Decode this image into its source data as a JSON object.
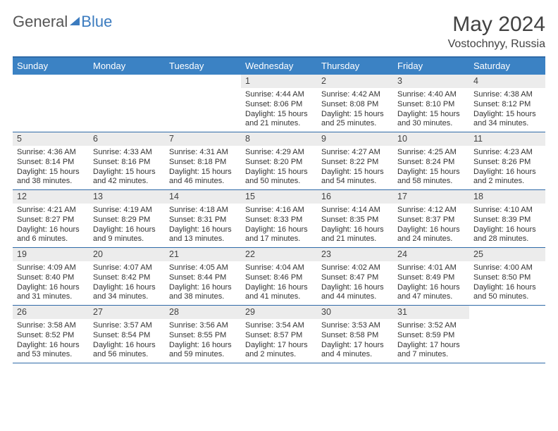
{
  "logo": {
    "word1": "General",
    "word2": "Blue"
  },
  "title": "May 2024",
  "subtitle": "Vostochnyy, Russia",
  "colors": {
    "header_bg": "#3b82c4",
    "rule": "#2f6aa8",
    "daynum_bg": "#ececec",
    "text": "#333333"
  },
  "day_headers": [
    "Sunday",
    "Monday",
    "Tuesday",
    "Wednesday",
    "Thursday",
    "Friday",
    "Saturday"
  ],
  "weeks": [
    [
      {
        "n": "",
        "lines": [
          "",
          "",
          ""
        ]
      },
      {
        "n": "",
        "lines": [
          "",
          "",
          ""
        ]
      },
      {
        "n": "",
        "lines": [
          "",
          "",
          ""
        ]
      },
      {
        "n": "1",
        "lines": [
          "Sunrise: 4:44 AM",
          "Sunset: 8:06 PM",
          "Daylight: 15 hours and 21 minutes."
        ]
      },
      {
        "n": "2",
        "lines": [
          "Sunrise: 4:42 AM",
          "Sunset: 8:08 PM",
          "Daylight: 15 hours and 25 minutes."
        ]
      },
      {
        "n": "3",
        "lines": [
          "Sunrise: 4:40 AM",
          "Sunset: 8:10 PM",
          "Daylight: 15 hours and 30 minutes."
        ]
      },
      {
        "n": "4",
        "lines": [
          "Sunrise: 4:38 AM",
          "Sunset: 8:12 PM",
          "Daylight: 15 hours and 34 minutes."
        ]
      }
    ],
    [
      {
        "n": "5",
        "lines": [
          "Sunrise: 4:36 AM",
          "Sunset: 8:14 PM",
          "Daylight: 15 hours and 38 minutes."
        ]
      },
      {
        "n": "6",
        "lines": [
          "Sunrise: 4:33 AM",
          "Sunset: 8:16 PM",
          "Daylight: 15 hours and 42 minutes."
        ]
      },
      {
        "n": "7",
        "lines": [
          "Sunrise: 4:31 AM",
          "Sunset: 8:18 PM",
          "Daylight: 15 hours and 46 minutes."
        ]
      },
      {
        "n": "8",
        "lines": [
          "Sunrise: 4:29 AM",
          "Sunset: 8:20 PM",
          "Daylight: 15 hours and 50 minutes."
        ]
      },
      {
        "n": "9",
        "lines": [
          "Sunrise: 4:27 AM",
          "Sunset: 8:22 PM",
          "Daylight: 15 hours and 54 minutes."
        ]
      },
      {
        "n": "10",
        "lines": [
          "Sunrise: 4:25 AM",
          "Sunset: 8:24 PM",
          "Daylight: 15 hours and 58 minutes."
        ]
      },
      {
        "n": "11",
        "lines": [
          "Sunrise: 4:23 AM",
          "Sunset: 8:26 PM",
          "Daylight: 16 hours and 2 minutes."
        ]
      }
    ],
    [
      {
        "n": "12",
        "lines": [
          "Sunrise: 4:21 AM",
          "Sunset: 8:27 PM",
          "Daylight: 16 hours and 6 minutes."
        ]
      },
      {
        "n": "13",
        "lines": [
          "Sunrise: 4:19 AM",
          "Sunset: 8:29 PM",
          "Daylight: 16 hours and 9 minutes."
        ]
      },
      {
        "n": "14",
        "lines": [
          "Sunrise: 4:18 AM",
          "Sunset: 8:31 PM",
          "Daylight: 16 hours and 13 minutes."
        ]
      },
      {
        "n": "15",
        "lines": [
          "Sunrise: 4:16 AM",
          "Sunset: 8:33 PM",
          "Daylight: 16 hours and 17 minutes."
        ]
      },
      {
        "n": "16",
        "lines": [
          "Sunrise: 4:14 AM",
          "Sunset: 8:35 PM",
          "Daylight: 16 hours and 21 minutes."
        ]
      },
      {
        "n": "17",
        "lines": [
          "Sunrise: 4:12 AM",
          "Sunset: 8:37 PM",
          "Daylight: 16 hours and 24 minutes."
        ]
      },
      {
        "n": "18",
        "lines": [
          "Sunrise: 4:10 AM",
          "Sunset: 8:39 PM",
          "Daylight: 16 hours and 28 minutes."
        ]
      }
    ],
    [
      {
        "n": "19",
        "lines": [
          "Sunrise: 4:09 AM",
          "Sunset: 8:40 PM",
          "Daylight: 16 hours and 31 minutes."
        ]
      },
      {
        "n": "20",
        "lines": [
          "Sunrise: 4:07 AM",
          "Sunset: 8:42 PM",
          "Daylight: 16 hours and 34 minutes."
        ]
      },
      {
        "n": "21",
        "lines": [
          "Sunrise: 4:05 AM",
          "Sunset: 8:44 PM",
          "Daylight: 16 hours and 38 minutes."
        ]
      },
      {
        "n": "22",
        "lines": [
          "Sunrise: 4:04 AM",
          "Sunset: 8:46 PM",
          "Daylight: 16 hours and 41 minutes."
        ]
      },
      {
        "n": "23",
        "lines": [
          "Sunrise: 4:02 AM",
          "Sunset: 8:47 PM",
          "Daylight: 16 hours and 44 minutes."
        ]
      },
      {
        "n": "24",
        "lines": [
          "Sunrise: 4:01 AM",
          "Sunset: 8:49 PM",
          "Daylight: 16 hours and 47 minutes."
        ]
      },
      {
        "n": "25",
        "lines": [
          "Sunrise: 4:00 AM",
          "Sunset: 8:50 PM",
          "Daylight: 16 hours and 50 minutes."
        ]
      }
    ],
    [
      {
        "n": "26",
        "lines": [
          "Sunrise: 3:58 AM",
          "Sunset: 8:52 PM",
          "Daylight: 16 hours and 53 minutes."
        ]
      },
      {
        "n": "27",
        "lines": [
          "Sunrise: 3:57 AM",
          "Sunset: 8:54 PM",
          "Daylight: 16 hours and 56 minutes."
        ]
      },
      {
        "n": "28",
        "lines": [
          "Sunrise: 3:56 AM",
          "Sunset: 8:55 PM",
          "Daylight: 16 hours and 59 minutes."
        ]
      },
      {
        "n": "29",
        "lines": [
          "Sunrise: 3:54 AM",
          "Sunset: 8:57 PM",
          "Daylight: 17 hours and 2 minutes."
        ]
      },
      {
        "n": "30",
        "lines": [
          "Sunrise: 3:53 AM",
          "Sunset: 8:58 PM",
          "Daylight: 17 hours and 4 minutes."
        ]
      },
      {
        "n": "31",
        "lines": [
          "Sunrise: 3:52 AM",
          "Sunset: 8:59 PM",
          "Daylight: 17 hours and 7 minutes."
        ]
      },
      {
        "n": "",
        "lines": [
          "",
          "",
          ""
        ]
      }
    ]
  ]
}
